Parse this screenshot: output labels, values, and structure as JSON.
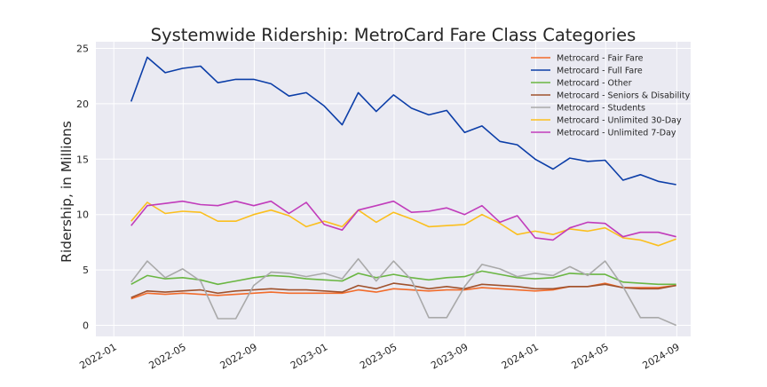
{
  "chart_data": {
    "type": "line",
    "title": "Systemwide Ridership: MetroCard Fare Class Categories",
    "xlabel": "",
    "ylabel": "Ridership, in Millions",
    "ylim": [
      -1,
      25.6
    ],
    "xlim": [
      "2021-12-01",
      "2024-09-25"
    ],
    "grid": true,
    "legend_position": "top-right",
    "x_tick_labels": [
      "2022-01",
      "2022-05",
      "2022-09",
      "2023-01",
      "2023-05",
      "2023-09",
      "2024-01",
      "2024-05",
      "2024-09"
    ],
    "y_ticks": [
      0,
      5,
      10,
      15,
      20,
      25
    ],
    "x": [
      "2022-01-31",
      "2022-02-28",
      "2022-03-31",
      "2022-04-30",
      "2022-05-31",
      "2022-06-30",
      "2022-07-31",
      "2022-08-31",
      "2022-09-30",
      "2022-10-31",
      "2022-11-30",
      "2022-12-31",
      "2023-01-31",
      "2023-02-28",
      "2023-03-31",
      "2023-04-30",
      "2023-05-31",
      "2023-06-30",
      "2023-07-31",
      "2023-08-31",
      "2023-09-30",
      "2023-10-31",
      "2023-11-30",
      "2023-12-31",
      "2024-01-31",
      "2024-02-29",
      "2024-03-31",
      "2024-04-30",
      "2024-05-31",
      "2024-06-30",
      "2024-07-31",
      "2024-08-31"
    ],
    "series": [
      {
        "name": "Metrocard - Fair Fare",
        "color": "#f26b2a",
        "values": [
          2.4,
          2.9,
          2.8,
          2.9,
          2.8,
          2.7,
          2.8,
          2.9,
          3.0,
          2.9,
          2.9,
          2.9,
          2.9,
          3.2,
          3.0,
          3.3,
          3.2,
          3.1,
          3.2,
          3.2,
          3.4,
          3.3,
          3.2,
          3.1,
          3.2,
          3.5,
          3.5,
          3.8,
          3.4,
          3.4,
          3.4,
          3.6
        ]
      },
      {
        "name": "Metrocard - Full Fare",
        "color": "#0c3ea8",
        "values": [
          20.2,
          24.2,
          22.8,
          23.2,
          23.4,
          21.9,
          22.2,
          22.2,
          21.8,
          20.7,
          21.0,
          19.8,
          18.1,
          21.0,
          19.3,
          20.8,
          19.6,
          19.0,
          19.4,
          17.4,
          18.0,
          16.6,
          16.3,
          15.0,
          14.1,
          15.1,
          14.8,
          14.9,
          13.1,
          13.6,
          13.0,
          12.7
        ]
      },
      {
        "name": "Metrocard - Other",
        "color": "#6ab642",
        "values": [
          3.7,
          4.5,
          4.2,
          4.3,
          4.1,
          3.7,
          4.0,
          4.3,
          4.5,
          4.4,
          4.2,
          4.1,
          4.0,
          4.7,
          4.3,
          4.6,
          4.3,
          4.1,
          4.3,
          4.4,
          4.9,
          4.6,
          4.3,
          4.2,
          4.3,
          4.7,
          4.6,
          4.6,
          3.9,
          3.8,
          3.7,
          3.7
        ]
      },
      {
        "name": "Metrocard - Seniors & Disability",
        "color": "#a0522d",
        "values": [
          2.5,
          3.1,
          3.0,
          3.1,
          3.2,
          2.9,
          3.1,
          3.2,
          3.3,
          3.2,
          3.2,
          3.1,
          3.0,
          3.6,
          3.3,
          3.8,
          3.6,
          3.3,
          3.5,
          3.3,
          3.7,
          3.6,
          3.5,
          3.3,
          3.3,
          3.5,
          3.5,
          3.7,
          3.4,
          3.3,
          3.3,
          3.6
        ]
      },
      {
        "name": "Metrocard - Students",
        "color": "#a9a9a9",
        "values": [
          3.9,
          5.8,
          4.3,
          5.1,
          4.0,
          0.6,
          0.6,
          3.6,
          4.8,
          4.7,
          4.4,
          4.7,
          4.2,
          6.0,
          4.0,
          5.8,
          4.1,
          0.7,
          0.7,
          3.5,
          5.5,
          5.1,
          4.4,
          4.7,
          4.5,
          5.3,
          4.5,
          5.8,
          3.5,
          0.7,
          0.7,
          0.0
        ]
      },
      {
        "name": "Metrocard - Unlimited 30-Day",
        "color": "#fbbf1e",
        "values": [
          9.4,
          11.1,
          10.1,
          10.3,
          10.2,
          9.4,
          9.4,
          10.0,
          10.4,
          9.9,
          8.9,
          9.4,
          8.9,
          10.4,
          9.3,
          10.2,
          9.6,
          8.9,
          9.0,
          9.1,
          10.0,
          9.2,
          8.2,
          8.5,
          8.2,
          8.7,
          8.5,
          8.8,
          7.9,
          7.7,
          7.2,
          7.8
        ]
      },
      {
        "name": "Metrocard - Unlimited 7-Day",
        "color": "#c13cbb",
        "values": [
          9.0,
          10.8,
          11.0,
          11.2,
          10.9,
          10.8,
          11.2,
          10.8,
          11.2,
          10.1,
          11.1,
          9.1,
          8.6,
          10.4,
          10.8,
          11.2,
          10.2,
          10.3,
          10.6,
          10.0,
          10.8,
          9.3,
          9.9,
          7.9,
          7.7,
          8.8,
          9.3,
          9.2,
          8.0,
          8.4,
          8.4,
          8.0
        ]
      }
    ]
  }
}
